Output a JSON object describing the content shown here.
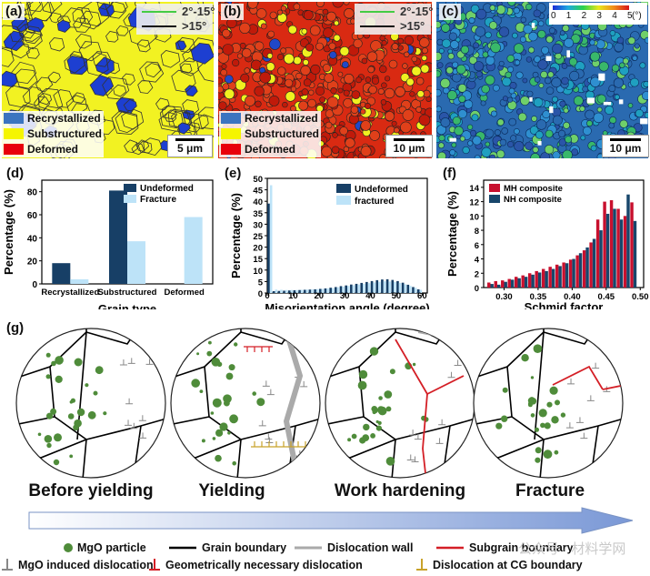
{
  "panels": {
    "a": {
      "tag": "(a)",
      "legend": {
        "angle_low": "2°-15°",
        "angle_high": ">15°"
      },
      "types": [
        "Recrystallized",
        "Substructured",
        "Deformed"
      ],
      "scale": "5 μm"
    },
    "b": {
      "tag": "(b)",
      "legend": {
        "angle_low": "2°-15°",
        "angle_high": ">15°"
      },
      "types": [
        "Recrystallized",
        "Substructured",
        "Deformed"
      ],
      "scale": "10 μm"
    },
    "c": {
      "tag": "(c)",
      "colorbar_ticks": [
        "0",
        "1",
        "2",
        "3",
        "4",
        "5"
      ],
      "colorbar_unit": "(°)",
      "scale": "10 μm"
    }
  },
  "colors": {
    "recrystallized": "#3b74c0",
    "substructured": "#f5f500",
    "deformed": "#e8000b",
    "undeformed_bar": "#173f66",
    "fracture_bar": "#bde3f8",
    "mh": "#c8102e",
    "nh": "#17466b",
    "grain_boundary": "#000000",
    "dislocation_wall": "#aaaaaa",
    "subgrain_boundary": "#d41f26",
    "particle": "#4f8c3a",
    "cg_dislocation": "#c8a22a"
  },
  "chart_data": [
    {
      "panel": "(d)",
      "type": "bar",
      "xlabel": "Grain type",
      "ylabel": "Percentage (%)",
      "categories": [
        "Recrystallized",
        "Substructured",
        "Deformed"
      ],
      "ylim": [
        0,
        90
      ],
      "yticks": [
        0,
        20,
        40,
        60,
        80
      ],
      "series": [
        {
          "name": "Undeformed",
          "values": [
            18,
            81,
            0
          ]
        },
        {
          "name": "Fracture",
          "values": [
            4,
            37,
            58
          ]
        }
      ],
      "legend": "top-right"
    },
    {
      "panel": "(e)",
      "type": "bar",
      "xlabel": "Misorientation angle (degree)",
      "ylabel": "Percentage (%)",
      "xlim": [
        0,
        62
      ],
      "ylim": [
        0,
        50
      ],
      "xticks": [
        0,
        10,
        20,
        30,
        40,
        50,
        60
      ],
      "yticks": [
        0,
        5,
        10,
        15,
        20,
        25,
        30,
        35,
        40,
        45,
        50
      ],
      "x": [
        1,
        3,
        5,
        7,
        9,
        11,
        13,
        15,
        17,
        19,
        21,
        23,
        25,
        27,
        29,
        31,
        33,
        35,
        37,
        39,
        41,
        43,
        45,
        47,
        49,
        51,
        53,
        55,
        57,
        59
      ],
      "series": [
        {
          "name": "Undeformed",
          "values": [
            39,
            0.8,
            0.9,
            1.0,
            1.1,
            1.2,
            1.3,
            1.4,
            1.5,
            1.6,
            1.8,
            2.0,
            2.3,
            2.6,
            3.0,
            3.3,
            3.7,
            4.0,
            4.4,
            4.8,
            5.2,
            5.6,
            5.9,
            6.0,
            5.7,
            5.2,
            4.5,
            3.6,
            2.6,
            1.6
          ]
        },
        {
          "name": "fractured",
          "values": [
            47,
            1.5,
            1.4,
            1.3,
            1.3,
            1.3,
            1.4,
            1.5,
            1.6,
            1.7,
            1.8,
            2.0,
            2.2,
            2.5,
            2.8,
            3.1,
            3.4,
            3.7,
            4.0,
            4.3,
            4.6,
            4.9,
            5.1,
            5.0,
            4.8,
            4.4,
            3.8,
            3.1,
            2.3,
            1.4
          ]
        }
      ],
      "legend": "top-right"
    },
    {
      "panel": "(f)",
      "type": "bar",
      "xlabel": "Schmid factor",
      "ylabel": "Percentage (%)",
      "xlim": [
        0.27,
        0.505
      ],
      "ylim": [
        0,
        15
      ],
      "xticks": [
        0.3,
        0.35,
        0.4,
        0.45,
        0.5
      ],
      "yticks": [
        0,
        2,
        4,
        6,
        8,
        10,
        12,
        14
      ],
      "x": [
        0.28,
        0.29,
        0.3,
        0.31,
        0.32,
        0.33,
        0.34,
        0.35,
        0.36,
        0.37,
        0.38,
        0.39,
        0.4,
        0.41,
        0.42,
        0.43,
        0.44,
        0.45,
        0.46,
        0.47,
        0.48,
        0.49
      ],
      "series": [
        {
          "name": "MH composite",
          "values": [
            0.7,
            0.9,
            1.0,
            1.2,
            1.5,
            1.7,
            2.0,
            2.3,
            2.6,
            2.9,
            3.2,
            3.5,
            3.9,
            4.5,
            5.2,
            6.3,
            9.5,
            12.0,
            12.2,
            11.0,
            10.0,
            11.9
          ]
        },
        {
          "name": "NH composite",
          "values": [
            0.5,
            0.4,
            0.8,
            1.1,
            1.3,
            1.5,
            1.8,
            2.1,
            2.3,
            2.6,
            3.0,
            3.4,
            4.0,
            4.8,
            5.6,
            6.8,
            8.0,
            10.3,
            11.0,
            9.5,
            13.0,
            9.3
          ]
        }
      ],
      "legend": "top-left"
    }
  ],
  "panel_tags": {
    "d": "(d)",
    "e": "(e)",
    "f": "(f)",
    "g": "(g)"
  },
  "stages": [
    "Before yielding",
    "Yielding",
    "Work hardening",
    "Fracture"
  ],
  "legend_bottom": {
    "mgo": "MgO particle",
    "gb": "Grain boundary",
    "wall": "Dislocation wall",
    "sgb": "Subgrain boundary",
    "mgo_disl": "MgO induced dislocation",
    "gnd": "Geometrically necessary dislocation",
    "cg": "Dislocation at CG boundary"
  },
  "watermark": "公众号 · 材料学网"
}
